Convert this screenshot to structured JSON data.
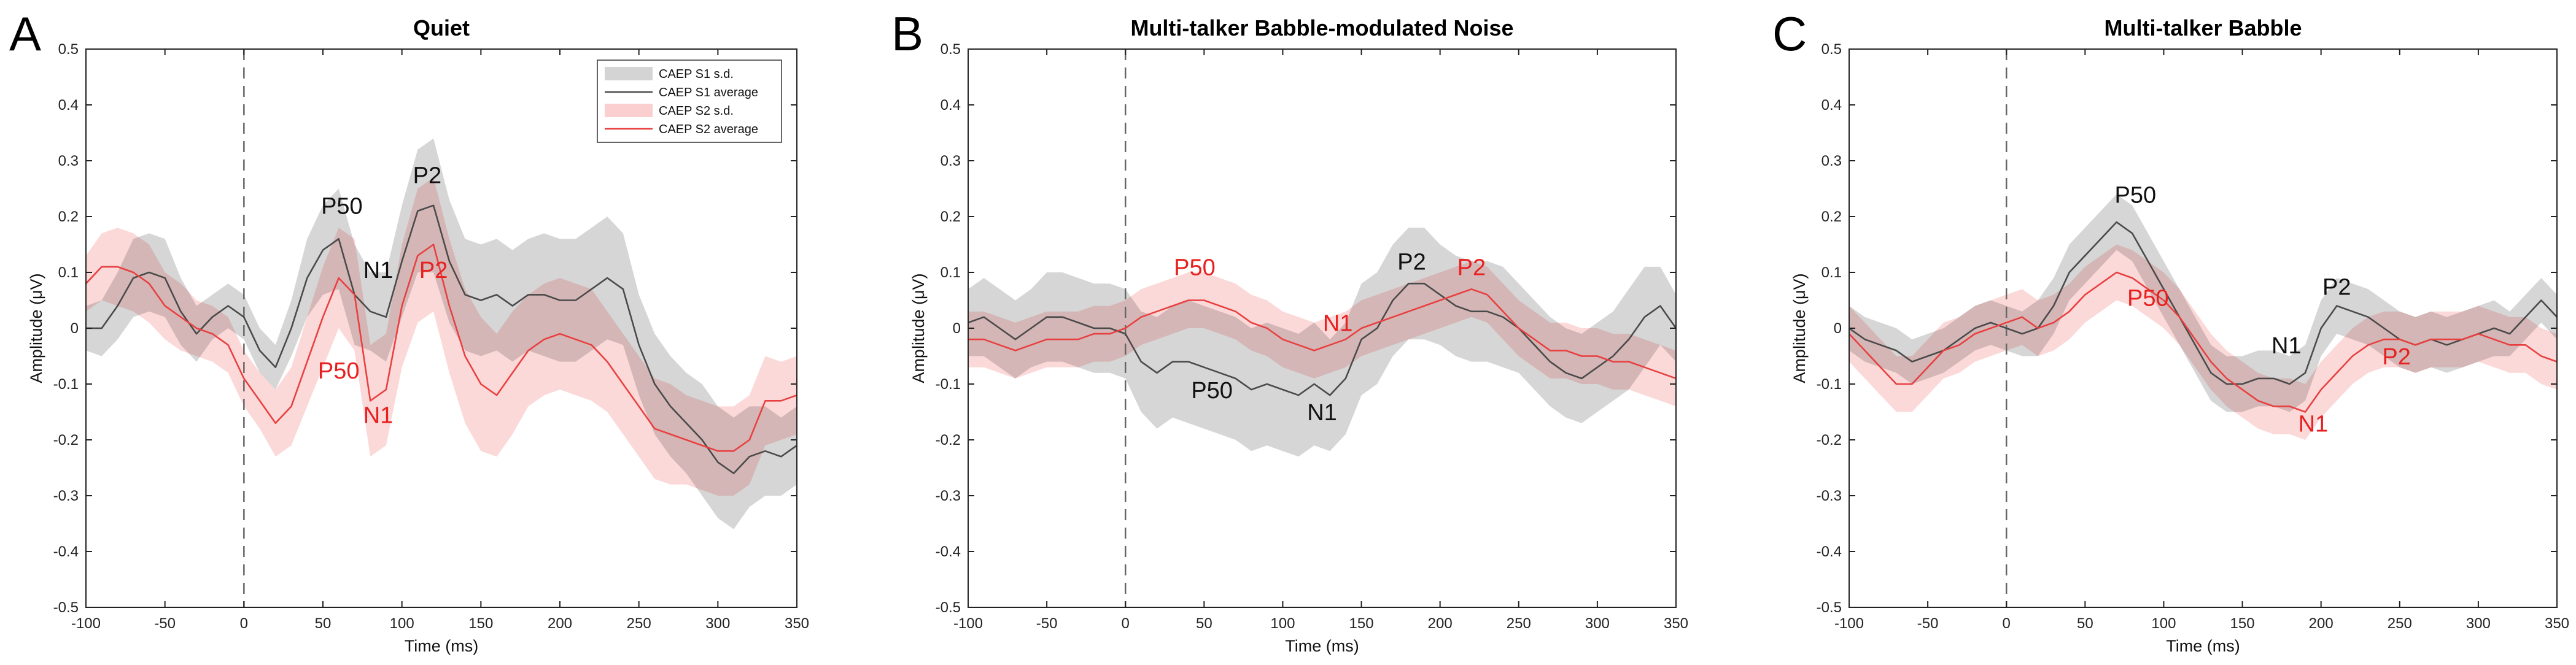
{
  "chart_data": [
    {
      "type": "line",
      "letter": "A",
      "title": "Quiet",
      "xlabel": "Time (ms)",
      "ylabel": "Amplitude (μV)",
      "xlim": [
        -100,
        350
      ],
      "ylim": [
        -0.5,
        0.5
      ],
      "xticks": [
        -100,
        -50,
        0,
        50,
        100,
        150,
        200,
        250,
        300,
        350
      ],
      "yticks": [
        -0.5,
        -0.4,
        -0.3,
        -0.2,
        -0.1,
        0,
        0.1,
        0.2,
        0.3,
        0.4,
        0.5
      ],
      "ytick_labels": [
        "-0.5",
        "-0.4",
        "-0.3",
        "-0.2",
        "-0.1",
        "0",
        "0.1",
        "0.2",
        "0.3",
        "0.4",
        "0.5"
      ],
      "x": [
        -100,
        -90,
        -80,
        -70,
        -60,
        -50,
        -40,
        -30,
        -20,
        -10,
        0,
        10,
        20,
        30,
        40,
        50,
        60,
        70,
        80,
        90,
        100,
        110,
        120,
        130,
        140,
        150,
        160,
        170,
        180,
        190,
        200,
        210,
        220,
        230,
        240,
        250,
        260,
        270,
        280,
        290,
        300,
        310,
        320,
        330,
        340,
        350
      ],
      "series": [
        {
          "name": "CAEP S1 average",
          "color": "#4a4a4a",
          "band_color": "#d4d4d4",
          "values": [
            0.0,
            0.0,
            0.04,
            0.09,
            0.1,
            0.09,
            0.03,
            -0.01,
            0.02,
            0.04,
            0.02,
            -0.04,
            -0.07,
            0.0,
            0.09,
            0.14,
            0.16,
            0.06,
            0.03,
            0.02,
            0.12,
            0.21,
            0.22,
            0.12,
            0.06,
            0.05,
            0.06,
            0.04,
            0.06,
            0.06,
            0.05,
            0.05,
            0.07,
            0.09,
            0.07,
            -0.03,
            -0.1,
            -0.14,
            -0.17,
            -0.2,
            -0.24,
            -0.26,
            -0.23,
            -0.22,
            -0.23,
            -0.21
          ],
          "sd": [
            0.04,
            0.05,
            0.06,
            0.07,
            0.07,
            0.07,
            0.06,
            0.05,
            0.04,
            0.04,
            0.04,
            0.04,
            0.04,
            0.05,
            0.07,
            0.08,
            0.09,
            0.09,
            0.07,
            0.08,
            0.1,
            0.11,
            0.12,
            0.11,
            0.1,
            0.1,
            0.1,
            0.1,
            0.1,
            0.11,
            0.11,
            0.11,
            0.11,
            0.11,
            0.1,
            0.09,
            0.09,
            0.09,
            0.09,
            0.1,
            0.1,
            0.1,
            0.09,
            0.08,
            0.07,
            0.07
          ]
        },
        {
          "name": "CAEP S2 average",
          "color": "#e84040",
          "band_color": "#fbcfcf",
          "values": [
            0.08,
            0.11,
            0.11,
            0.1,
            0.08,
            0.04,
            0.02,
            0.0,
            -0.01,
            -0.03,
            -0.09,
            -0.13,
            -0.17,
            -0.14,
            -0.06,
            0.02,
            0.09,
            0.06,
            -0.13,
            -0.11,
            0.04,
            0.13,
            0.15,
            0.04,
            -0.05,
            -0.1,
            -0.12,
            -0.08,
            -0.04,
            -0.02,
            -0.01,
            -0.02,
            -0.03,
            -0.06,
            -0.1,
            -0.14,
            -0.18,
            -0.19,
            -0.2,
            -0.21,
            -0.22,
            -0.22,
            -0.2,
            -0.13,
            -0.13,
            -0.12
          ],
          "sd": [
            0.05,
            0.06,
            0.07,
            0.07,
            0.07,
            0.06,
            0.06,
            0.05,
            0.05,
            0.05,
            0.05,
            0.05,
            0.06,
            0.07,
            0.08,
            0.09,
            0.09,
            0.1,
            0.1,
            0.1,
            0.11,
            0.12,
            0.12,
            0.12,
            0.12,
            0.12,
            0.11,
            0.11,
            0.1,
            0.1,
            0.1,
            0.1,
            0.1,
            0.09,
            0.09,
            0.09,
            0.09,
            0.09,
            0.08,
            0.08,
            0.08,
            0.08,
            0.08,
            0.08,
            0.07,
            0.07
          ]
        }
      ],
      "annotations": [
        {
          "text": "P50",
          "x": 62,
          "y": 0.205,
          "color": "black"
        },
        {
          "text": "N1",
          "x": 85,
          "y": 0.09,
          "color": "black"
        },
        {
          "text": "P2",
          "x": 116,
          "y": 0.26,
          "color": "black"
        },
        {
          "text": "P2",
          "x": 120,
          "y": 0.09,
          "color": "red"
        },
        {
          "text": "P50",
          "x": 60,
          "y": -0.09,
          "color": "red"
        },
        {
          "text": "N1",
          "x": 85,
          "y": -0.17,
          "color": "red"
        }
      ],
      "legend": {
        "position": "top-right",
        "entries": [
          {
            "label": "CAEP S1 s.d.",
            "kind": "band",
            "color": "#d4d4d4"
          },
          {
            "label": "CAEP S1 average",
            "kind": "line",
            "color": "#4a4a4a"
          },
          {
            "label": "CAEP S2 s.d.",
            "kind": "band",
            "color": "#fbcfcf"
          },
          {
            "label": "CAEP S2 average",
            "kind": "line",
            "color": "#e84040"
          }
        ]
      }
    },
    {
      "type": "line",
      "letter": "B",
      "title": "Multi-talker Babble-modulated Noise",
      "xlabel": "Time (ms)",
      "ylabel": "Amplitude (μV)",
      "xlim": [
        -100,
        350
      ],
      "ylim": [
        -0.5,
        0.5
      ],
      "xticks": [
        -100,
        -50,
        0,
        50,
        100,
        150,
        200,
        250,
        300,
        350
      ],
      "yticks": [
        -0.5,
        -0.4,
        -0.3,
        -0.2,
        -0.1,
        0,
        0.1,
        0.2,
        0.3,
        0.4,
        0.5
      ],
      "ytick_labels": [
        "-0.5",
        "-0.4",
        "-0.3",
        "-0.2",
        "-0.1",
        "0",
        "0.1",
        "0.2",
        "0.3",
        "0.4",
        "0.5"
      ],
      "x": [
        -100,
        -90,
        -80,
        -70,
        -60,
        -50,
        -40,
        -30,
        -20,
        -10,
        0,
        10,
        20,
        30,
        40,
        50,
        60,
        70,
        80,
        90,
        100,
        110,
        120,
        130,
        140,
        150,
        160,
        170,
        180,
        190,
        200,
        210,
        220,
        230,
        240,
        250,
        260,
        270,
        280,
        290,
        300,
        310,
        320,
        330,
        340,
        350
      ],
      "series": [
        {
          "name": "CAEP S1 average",
          "color": "#4a4a4a",
          "band_color": "#d4d4d4",
          "values": [
            0.01,
            0.02,
            0.0,
            -0.02,
            0.0,
            0.02,
            0.02,
            0.01,
            0.0,
            0.0,
            -0.01,
            -0.06,
            -0.08,
            -0.06,
            -0.06,
            -0.07,
            -0.08,
            -0.09,
            -0.11,
            -0.1,
            -0.11,
            -0.12,
            -0.1,
            -0.12,
            -0.09,
            -0.02,
            0.0,
            0.05,
            0.08,
            0.08,
            0.06,
            0.04,
            0.03,
            0.03,
            0.02,
            0.0,
            -0.03,
            -0.06,
            -0.08,
            -0.09,
            -0.07,
            -0.05,
            -0.02,
            0.02,
            0.04,
            0.0
          ],
          "sd": [
            0.06,
            0.07,
            0.07,
            0.07,
            0.07,
            0.08,
            0.08,
            0.08,
            0.08,
            0.08,
            0.08,
            0.09,
            0.1,
            0.1,
            0.11,
            0.11,
            0.11,
            0.11,
            0.11,
            0.11,
            0.11,
            0.11,
            0.11,
            0.1,
            0.1,
            0.1,
            0.1,
            0.1,
            0.1,
            0.1,
            0.09,
            0.09,
            0.09,
            0.09,
            0.09,
            0.08,
            0.08,
            0.08,
            0.08,
            0.08,
            0.08,
            0.08,
            0.09,
            0.09,
            0.07,
            0.06
          ]
        },
        {
          "name": "CAEP S2 average",
          "color": "#e84040",
          "band_color": "#fbcfcf",
          "values": [
            -0.02,
            -0.02,
            -0.03,
            -0.04,
            -0.03,
            -0.02,
            -0.02,
            -0.02,
            -0.01,
            -0.01,
            0.0,
            0.02,
            0.03,
            0.04,
            0.05,
            0.05,
            0.04,
            0.03,
            0.01,
            0.0,
            -0.02,
            -0.03,
            -0.04,
            -0.03,
            -0.02,
            0.0,
            0.01,
            0.02,
            0.03,
            0.04,
            0.05,
            0.06,
            0.07,
            0.06,
            0.03,
            0.0,
            -0.02,
            -0.04,
            -0.04,
            -0.05,
            -0.05,
            -0.06,
            -0.06,
            -0.07,
            -0.08,
            -0.09
          ],
          "sd": [
            0.05,
            0.05,
            0.05,
            0.05,
            0.05,
            0.05,
            0.05,
            0.05,
            0.05,
            0.05,
            0.05,
            0.05,
            0.05,
            0.05,
            0.05,
            0.05,
            0.05,
            0.05,
            0.05,
            0.05,
            0.05,
            0.05,
            0.05,
            0.05,
            0.05,
            0.05,
            0.05,
            0.05,
            0.05,
            0.05,
            0.05,
            0.05,
            0.05,
            0.05,
            0.05,
            0.05,
            0.05,
            0.05,
            0.05,
            0.05,
            0.05,
            0.05,
            0.05,
            0.05,
            0.05,
            0.05
          ]
        }
      ],
      "annotations": [
        {
          "text": "P50",
          "x": 44,
          "y": 0.095,
          "color": "red"
        },
        {
          "text": "N1",
          "x": 135,
          "y": -0.005,
          "color": "red"
        },
        {
          "text": "P2",
          "x": 182,
          "y": 0.105,
          "color": "black"
        },
        {
          "text": "P2",
          "x": 220,
          "y": 0.095,
          "color": "red"
        },
        {
          "text": "P50",
          "x": 55,
          "y": -0.125,
          "color": "black"
        },
        {
          "text": "N1",
          "x": 125,
          "y": -0.165,
          "color": "black"
        }
      ]
    },
    {
      "type": "line",
      "letter": "C",
      "title": "Multi-talker Babble",
      "xlabel": "Time (ms)",
      "ylabel": "Amplitude (μV)",
      "xlim": [
        -100,
        350
      ],
      "ylim": [
        -0.5,
        0.5
      ],
      "xticks": [
        -100,
        -50,
        0,
        50,
        100,
        150,
        200,
        250,
        300,
        350
      ],
      "yticks": [
        -0.5,
        -0.4,
        -0.3,
        -0.2,
        -0.1,
        0,
        0.1,
        0.2,
        0.3,
        0.4,
        0.5
      ],
      "ytick_labels": [
        "-0.5",
        "-0.4",
        "-0.3",
        "-0.2",
        "-0.1",
        "0",
        "0.1",
        "0.2",
        "0.3",
        "0.4",
        "0.5"
      ],
      "x": [
        -100,
        -90,
        -80,
        -70,
        -60,
        -50,
        -40,
        -30,
        -20,
        -10,
        0,
        10,
        20,
        30,
        40,
        50,
        60,
        70,
        80,
        90,
        100,
        110,
        120,
        130,
        140,
        150,
        160,
        170,
        180,
        190,
        200,
        210,
        220,
        230,
        240,
        250,
        260,
        270,
        280,
        290,
        300,
        310,
        320,
        330,
        340,
        350
      ],
      "series": [
        {
          "name": "CAEP S1 average",
          "color": "#4a4a4a",
          "band_color": "#d4d4d4",
          "values": [
            0.0,
            -0.02,
            -0.03,
            -0.04,
            -0.06,
            -0.05,
            -0.04,
            -0.02,
            0.0,
            0.01,
            0.0,
            -0.01,
            0.0,
            0.04,
            0.1,
            0.13,
            0.16,
            0.19,
            0.17,
            0.12,
            0.07,
            0.02,
            -0.03,
            -0.08,
            -0.1,
            -0.1,
            -0.09,
            -0.09,
            -0.1,
            -0.08,
            0.0,
            0.04,
            0.03,
            0.02,
            0.0,
            -0.02,
            -0.03,
            -0.02,
            -0.03,
            -0.02,
            -0.01,
            0.0,
            -0.01,
            0.02,
            0.05,
            0.02
          ],
          "sd": [
            0.04,
            0.04,
            0.04,
            0.04,
            0.04,
            0.04,
            0.04,
            0.04,
            0.04,
            0.04,
            0.04,
            0.04,
            0.05,
            0.05,
            0.05,
            0.05,
            0.05,
            0.05,
            0.05,
            0.05,
            0.05,
            0.05,
            0.05,
            0.05,
            0.05,
            0.05,
            0.05,
            0.05,
            0.05,
            0.05,
            0.05,
            0.05,
            0.05,
            0.05,
            0.05,
            0.05,
            0.05,
            0.05,
            0.05,
            0.05,
            0.05,
            0.05,
            0.04,
            0.04,
            0.04,
            0.04
          ]
        },
        {
          "name": "CAEP S2 average",
          "color": "#e84040",
          "band_color": "#fbcfcf",
          "values": [
            -0.01,
            -0.04,
            -0.07,
            -0.1,
            -0.1,
            -0.07,
            -0.04,
            -0.03,
            -0.01,
            0.0,
            0.01,
            0.02,
            0.0,
            0.01,
            0.03,
            0.06,
            0.08,
            0.1,
            0.09,
            0.07,
            0.05,
            0.02,
            -0.02,
            -0.06,
            -0.09,
            -0.11,
            -0.13,
            -0.14,
            -0.14,
            -0.15,
            -0.11,
            -0.08,
            -0.05,
            -0.03,
            -0.02,
            -0.02,
            -0.03,
            -0.02,
            -0.02,
            -0.02,
            -0.01,
            -0.02,
            -0.03,
            -0.03,
            -0.05,
            -0.06
          ],
          "sd": [
            0.05,
            0.05,
            0.05,
            0.05,
            0.05,
            0.05,
            0.05,
            0.05,
            0.05,
            0.05,
            0.05,
            0.05,
            0.05,
            0.05,
            0.05,
            0.05,
            0.05,
            0.05,
            0.05,
            0.05,
            0.05,
            0.05,
            0.05,
            0.05,
            0.05,
            0.05,
            0.05,
            0.05,
            0.05,
            0.05,
            0.05,
            0.05,
            0.05,
            0.05,
            0.05,
            0.05,
            0.05,
            0.05,
            0.05,
            0.05,
            0.05,
            0.05,
            0.05,
            0.05,
            0.05,
            0.05
          ]
        }
      ],
      "annotations": [
        {
          "text": "P50",
          "x": 82,
          "y": 0.225,
          "color": "black"
        },
        {
          "text": "P50",
          "x": 90,
          "y": 0.04,
          "color": "red"
        },
        {
          "text": "P2",
          "x": 210,
          "y": 0.06,
          "color": "black"
        },
        {
          "text": "N1",
          "x": 178,
          "y": -0.045,
          "color": "black"
        },
        {
          "text": "P2",
          "x": 248,
          "y": -0.065,
          "color": "red"
        },
        {
          "text": "N1",
          "x": 195,
          "y": -0.185,
          "color": "red"
        }
      ]
    }
  ]
}
